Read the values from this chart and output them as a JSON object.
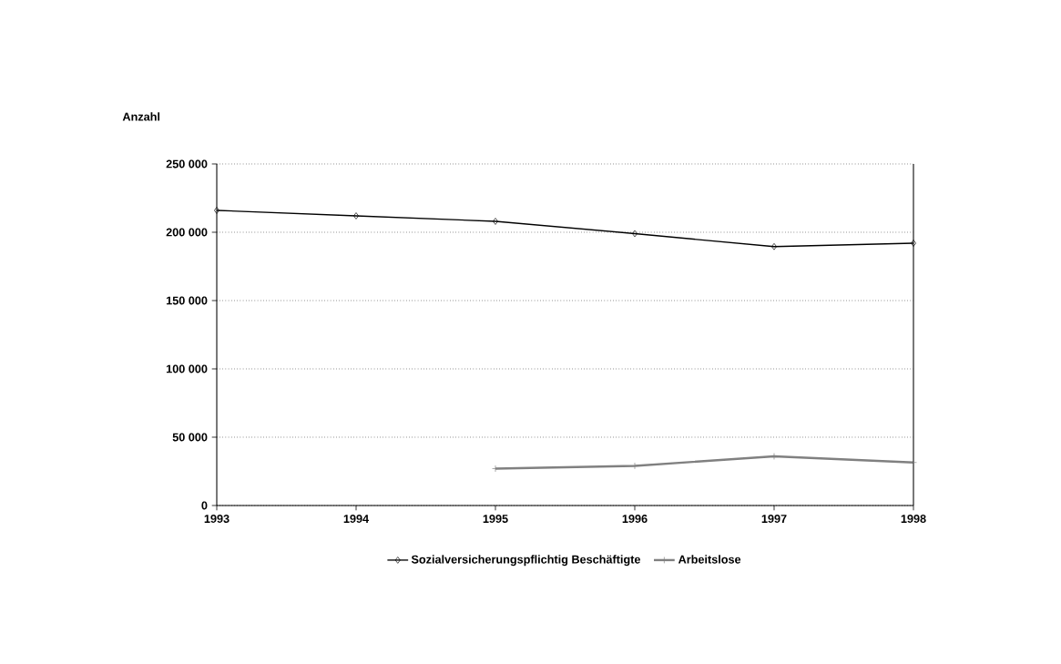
{
  "chart_data": {
    "type": "line",
    "ylabel": "Anzahl",
    "x": [
      1993,
      1994,
      1995,
      1996,
      1997,
      1998
    ],
    "series": [
      {
        "name": "Sozialversicherungspflichtig Beschäftigte",
        "color": "#000000",
        "marker": "diamond",
        "values": [
          216000,
          212000,
          208000,
          199000,
          189500,
          192000
        ]
      },
      {
        "name": "Arbeitslose",
        "color": "#808080",
        "marker": "cross",
        "x": [
          1995,
          1996,
          1997,
          1998
        ],
        "values": [
          27000,
          29000,
          36000,
          31500
        ]
      }
    ],
    "xlim": [
      1993,
      1998
    ],
    "xticks": [
      1993,
      1994,
      1995,
      1996,
      1997,
      1998
    ],
    "ylim": [
      0,
      250000
    ],
    "yticks": [
      {
        "value": 0,
        "label": "0"
      },
      {
        "value": 50000,
        "label": "50 000"
      },
      {
        "value": 100000,
        "label": "100 000"
      },
      {
        "value": 150000,
        "label": "150 000"
      },
      {
        "value": 200000,
        "label": "200 000"
      },
      {
        "value": 250000,
        "label": "250 000"
      }
    ],
    "grid": "y",
    "legend": "bottom",
    "line_style": "solid"
  }
}
